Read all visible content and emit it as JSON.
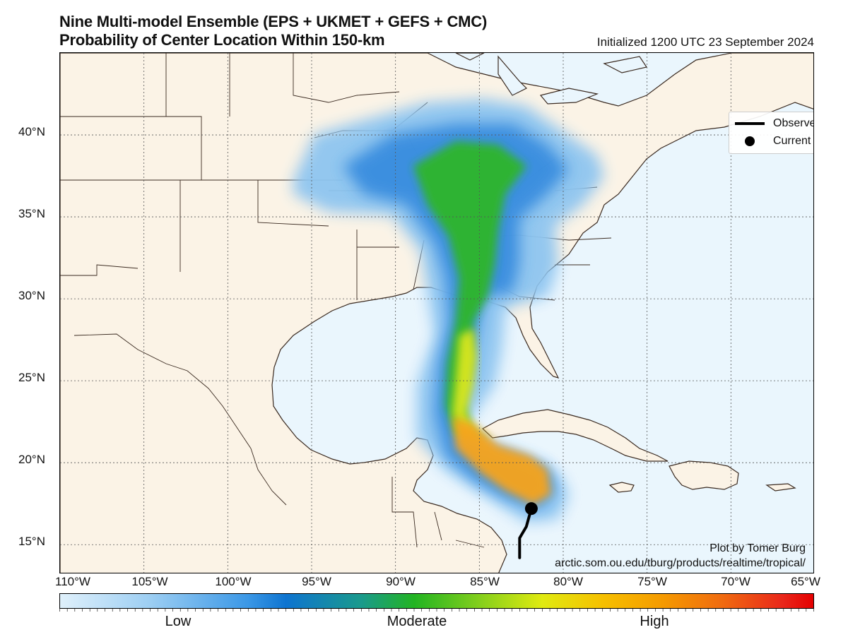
{
  "title": {
    "line1": "Nine Multi-model Ensemble (EPS + UKMET + GEFS + CMC)",
    "line2": "Probability of Center Location Within 150-km",
    "initialized": "Initialized 1200 UTC 23 September 2024"
  },
  "map": {
    "lon_range": [
      -110,
      -65
    ],
    "lat_range": [
      13.2,
      45
    ],
    "lat_labels": [
      "40°N",
      "35°N",
      "30°N",
      "25°N",
      "20°N",
      "15°N"
    ],
    "lon_labels": [
      "110°W",
      "105°W",
      "100°W",
      "95°W",
      "90°W",
      "85°W",
      "80°W",
      "75°W",
      "70°W",
      "65°W"
    ],
    "colors": {
      "ocean": "#eaf6fd",
      "land": "#fbf3e6",
      "border": "#3a2a20",
      "grid": "#555555"
    }
  },
  "legend": {
    "track_label": "Observed Track",
    "position_label": "Current Position"
  },
  "storm": {
    "current_position": {
      "lat": 17.2,
      "lon": -81.9
    },
    "observed_track": [
      {
        "lat": 14.2,
        "lon": -82.6
      },
      {
        "lat": 15.4,
        "lon": -82.6
      },
      {
        "lat": 16.1,
        "lon": -82.2
      },
      {
        "lat": 17.2,
        "lon": -81.9
      }
    ]
  },
  "credit": {
    "line1": "Plot by Tomer Burg",
    "line2": "arctic.som.ou.edu/tburg/products/realtime/tropical/"
  },
  "colorbar": {
    "low": "Low",
    "moderate": "Moderate",
    "high": "High",
    "colors": [
      "#dff0fb",
      "#3a97e6",
      "#0e74d0",
      "#22b422",
      "#e0ea10",
      "#f59a00",
      "#e50000"
    ]
  }
}
